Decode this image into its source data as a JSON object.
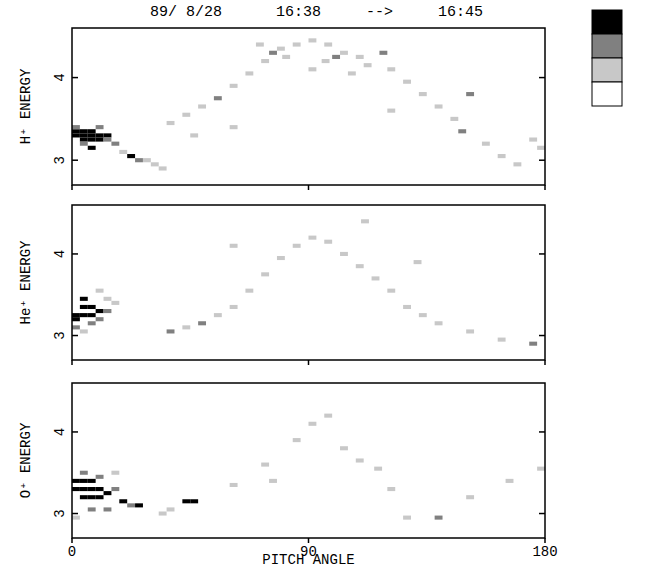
{
  "chart_data": [
    {
      "type": "heatmap",
      "title": "89/ 8/28      16:38     -->     16:45",
      "y_label": "H⁺ ENERGY",
      "xlim": [
        0,
        180
      ],
      "xticks": [
        0,
        90,
        180
      ],
      "ylim": [
        2.7,
        4.6
      ],
      "yticks": [
        3,
        4
      ],
      "tick_labels": "y",
      "colorbar": {
        "colors": [
          "#ffffff",
          "#c8c8c8",
          "#808080",
          "#000000"
        ]
      },
      "cells": [
        [
          0,
          3.3,
          3
        ],
        [
          3,
          3.3,
          3
        ],
        [
          6,
          3.3,
          3
        ],
        [
          9,
          3.3,
          3
        ],
        [
          0,
          3.35,
          3
        ],
        [
          3,
          3.35,
          3
        ],
        [
          6,
          3.35,
          3
        ],
        [
          9,
          3.25,
          3
        ],
        [
          3,
          3.25,
          3
        ],
        [
          6,
          3.25,
          3
        ],
        [
          12,
          3.3,
          3
        ],
        [
          3,
          3.2,
          2
        ],
        [
          6,
          3.15,
          3
        ],
        [
          0,
          3.4,
          2
        ],
        [
          9,
          3.4,
          2
        ],
        [
          12,
          3.25,
          2
        ],
        [
          15,
          3.2,
          2
        ],
        [
          18,
          3.1,
          1
        ],
        [
          21,
          3.05,
          3
        ],
        [
          24,
          3.0,
          2
        ],
        [
          27,
          3.0,
          1
        ],
        [
          30,
          2.95,
          1
        ],
        [
          33,
          2.9,
          1
        ],
        [
          36,
          3.45,
          1
        ],
        [
          42,
          3.55,
          1
        ],
        [
          48,
          3.65,
          1
        ],
        [
          54,
          3.75,
          2
        ],
        [
          60,
          3.9,
          1
        ],
        [
          66,
          4.05,
          1
        ],
        [
          72,
          4.2,
          1
        ],
        [
          75,
          4.3,
          2
        ],
        [
          78,
          4.35,
          1
        ],
        [
          84,
          4.4,
          1
        ],
        [
          90,
          4.45,
          1
        ],
        [
          96,
          4.4,
          1
        ],
        [
          99,
          4.25,
          2
        ],
        [
          102,
          4.3,
          1
        ],
        [
          108,
          4.25,
          1
        ],
        [
          111,
          4.15,
          1
        ],
        [
          117,
          4.3,
          2
        ],
        [
          120,
          4.1,
          1
        ],
        [
          126,
          3.95,
          1
        ],
        [
          132,
          3.8,
          1
        ],
        [
          138,
          3.65,
          1
        ],
        [
          144,
          3.5,
          1
        ],
        [
          147,
          3.35,
          2
        ],
        [
          150,
          3.8,
          2
        ],
        [
          156,
          3.2,
          1
        ],
        [
          162,
          3.05,
          1
        ],
        [
          168,
          2.95,
          1
        ],
        [
          174,
          3.25,
          1
        ],
        [
          177,
          3.15,
          1
        ],
        [
          60,
          3.4,
          1
        ],
        [
          45,
          3.3,
          1
        ],
        [
          120,
          3.6,
          1
        ],
        [
          90,
          4.1,
          1
        ],
        [
          95,
          4.2,
          1
        ],
        [
          105,
          4.05,
          1
        ],
        [
          70,
          4.4,
          1
        ],
        [
          80,
          4.25,
          1
        ]
      ]
    },
    {
      "type": "heatmap",
      "y_label": "He⁺ ENERGY",
      "xlim": [
        0,
        180
      ],
      "xticks": [
        0,
        90,
        180
      ],
      "ylim": [
        2.7,
        4.6
      ],
      "yticks": [
        3,
        4
      ],
      "tick_labels": "y",
      "cells": [
        [
          0,
          3.25,
          3
        ],
        [
          3,
          3.25,
          3
        ],
        [
          6,
          3.25,
          3
        ],
        [
          3,
          3.35,
          3
        ],
        [
          6,
          3.35,
          3
        ],
        [
          0,
          3.2,
          3
        ],
        [
          9,
          3.3,
          3
        ],
        [
          3,
          3.45,
          3
        ],
        [
          6,
          3.15,
          2
        ],
        [
          9,
          3.2,
          2
        ],
        [
          12,
          3.3,
          2
        ],
        [
          0,
          3.1,
          2
        ],
        [
          3,
          3.05,
          1
        ],
        [
          12,
          3.45,
          1
        ],
        [
          15,
          3.4,
          1
        ],
        [
          9,
          3.55,
          1
        ],
        [
          36,
          3.05,
          2
        ],
        [
          42,
          3.1,
          1
        ],
        [
          48,
          3.15,
          2
        ],
        [
          54,
          3.25,
          1
        ],
        [
          60,
          3.35,
          1
        ],
        [
          66,
          3.55,
          1
        ],
        [
          72,
          3.75,
          1
        ],
        [
          78,
          3.95,
          1
        ],
        [
          84,
          4.1,
          1
        ],
        [
          90,
          4.2,
          1
        ],
        [
          96,
          4.15,
          1
        ],
        [
          102,
          4.0,
          1
        ],
        [
          108,
          3.85,
          1
        ],
        [
          114,
          3.7,
          1
        ],
        [
          120,
          3.55,
          1
        ],
        [
          126,
          3.35,
          1
        ],
        [
          132,
          3.25,
          1
        ],
        [
          138,
          3.15,
          1
        ],
        [
          150,
          3.05,
          1
        ],
        [
          162,
          2.95,
          1
        ],
        [
          174,
          2.9,
          2
        ],
        [
          60,
          4.1,
          1
        ],
        [
          110,
          4.4,
          1
        ],
        [
          130,
          3.9,
          1
        ]
      ]
    },
    {
      "type": "heatmap",
      "y_label": "O⁺ ENERGY",
      "x_label": "PITCH ANGLE",
      "xlim": [
        0,
        180
      ],
      "xticks": [
        0,
        90,
        180
      ],
      "ylim": [
        2.7,
        4.6
      ],
      "yticks": [
        3,
        4
      ],
      "cells": [
        [
          0,
          3.3,
          3
        ],
        [
          3,
          3.3,
          3
        ],
        [
          6,
          3.3,
          3
        ],
        [
          9,
          3.3,
          3
        ],
        [
          3,
          3.2,
          3
        ],
        [
          6,
          3.2,
          3
        ],
        [
          0,
          3.4,
          3
        ],
        [
          3,
          3.4,
          3
        ],
        [
          6,
          3.4,
          3
        ],
        [
          9,
          3.2,
          3
        ],
        [
          12,
          3.25,
          3
        ],
        [
          3,
          3.5,
          2
        ],
        [
          9,
          3.45,
          2
        ],
        [
          15,
          3.3,
          2
        ],
        [
          18,
          3.15,
          3
        ],
        [
          21,
          3.1,
          2
        ],
        [
          24,
          3.1,
          3
        ],
        [
          12,
          3.05,
          2
        ],
        [
          6,
          3.05,
          2
        ],
        [
          0,
          2.95,
          1
        ],
        [
          15,
          3.5,
          1
        ],
        [
          42,
          3.15,
          3
        ],
        [
          45,
          3.15,
          3
        ],
        [
          33,
          3.0,
          1
        ],
        [
          36,
          3.05,
          1
        ],
        [
          60,
          3.35,
          1
        ],
        [
          72,
          3.6,
          1
        ],
        [
          84,
          3.9,
          1
        ],
        [
          90,
          4.1,
          1
        ],
        [
          96,
          4.2,
          1
        ],
        [
          102,
          3.8,
          1
        ],
        [
          108,
          3.65,
          1
        ],
        [
          120,
          3.3,
          1
        ],
        [
          126,
          2.95,
          1
        ],
        [
          138,
          2.95,
          2
        ],
        [
          150,
          3.2,
          1
        ],
        [
          165,
          3.4,
          1
        ],
        [
          177,
          3.55,
          1
        ],
        [
          75,
          3.4,
          1
        ],
        [
          115,
          3.55,
          1
        ]
      ]
    }
  ]
}
